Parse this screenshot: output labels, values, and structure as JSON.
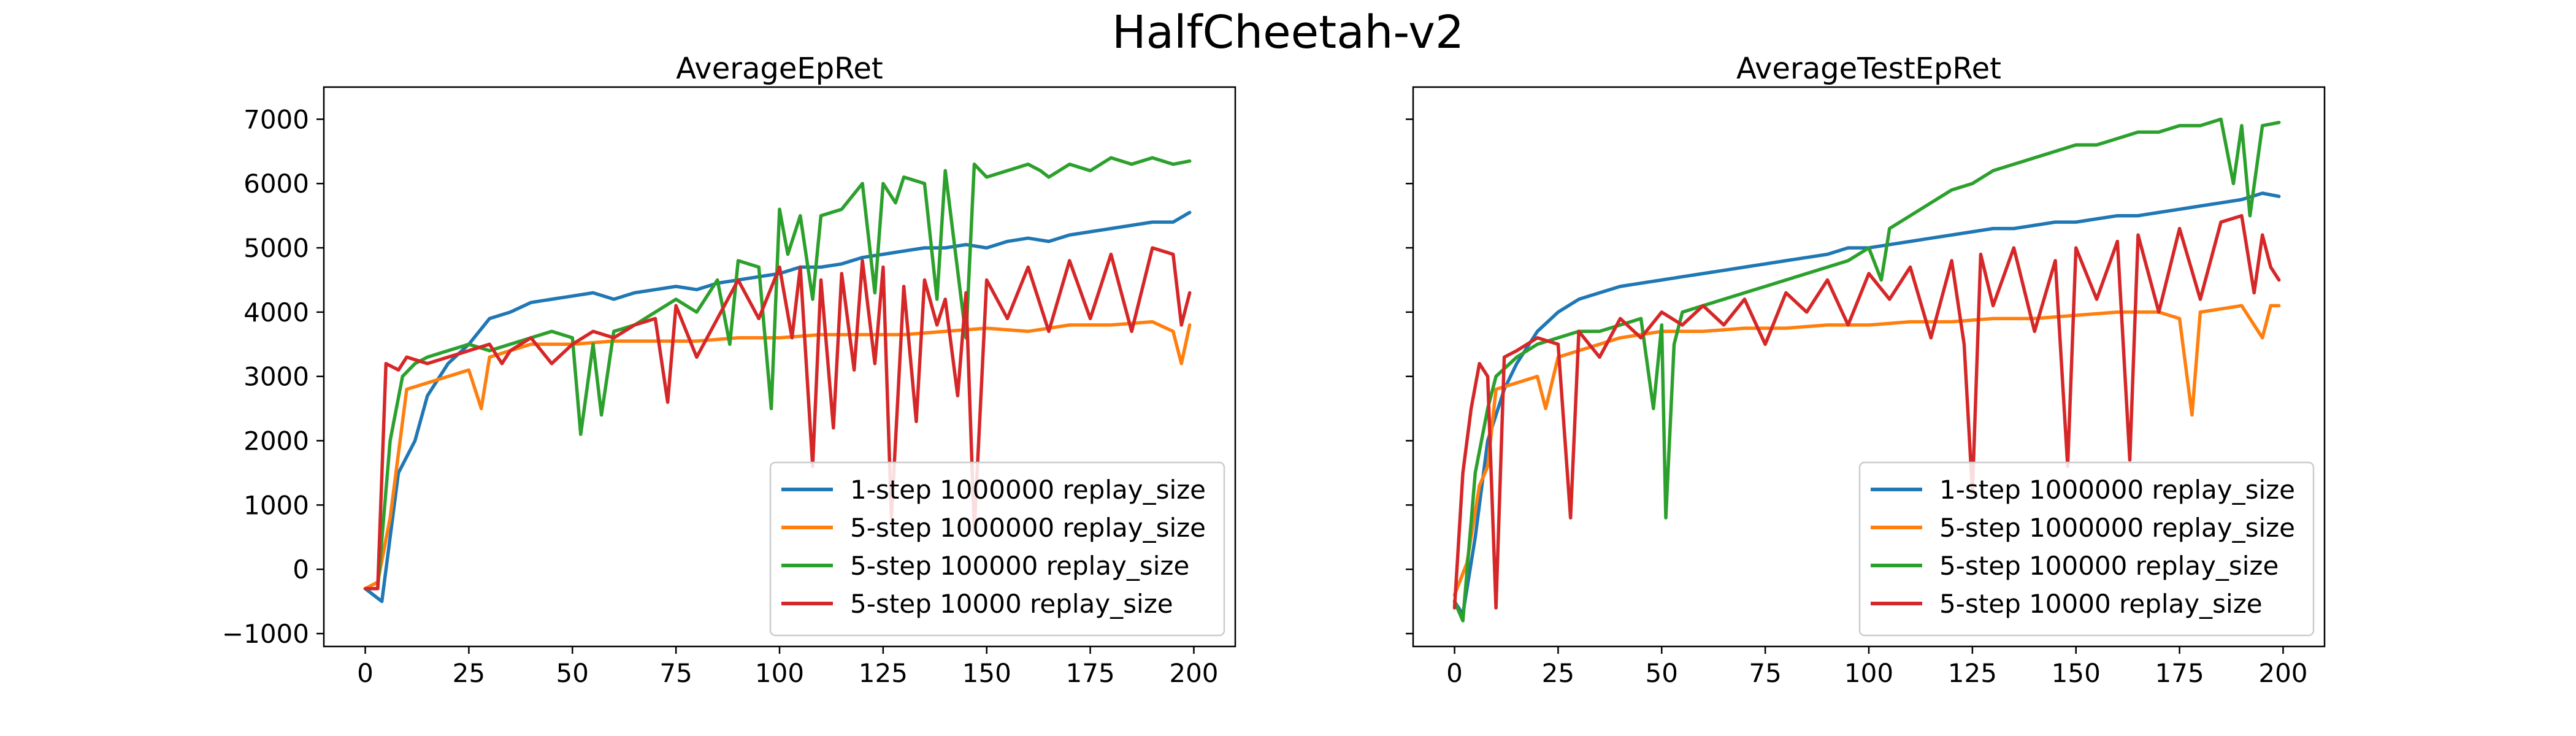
{
  "figure": {
    "title": "HalfCheetah-v2"
  },
  "chart_data": [
    {
      "type": "line",
      "title": "AverageEpRet",
      "xlabel": "",
      "ylabel": "",
      "xlim": [
        -10,
        210
      ],
      "ylim": [
        -1200,
        7500
      ],
      "xticks": [
        0,
        25,
        50,
        75,
        100,
        125,
        150,
        175,
        200
      ],
      "yticks": [
        -1000,
        0,
        1000,
        2000,
        3000,
        4000,
        5000,
        6000,
        7000
      ],
      "grid": false,
      "legend_position": "lower-right",
      "series": [
        {
          "name": "1-step 1000000 replay_size",
          "color": "#1f77b4",
          "x": [
            0,
            4,
            8,
            12,
            15,
            20,
            25,
            30,
            35,
            40,
            45,
            50,
            55,
            60,
            65,
            70,
            75,
            80,
            85,
            90,
            95,
            100,
            105,
            110,
            115,
            120,
            125,
            130,
            135,
            140,
            145,
            150,
            155,
            160,
            165,
            170,
            175,
            180,
            185,
            190,
            195,
            199
          ],
          "y": [
            -300,
            -500,
            1500,
            2000,
            2700,
            3200,
            3500,
            3900,
            4000,
            4150,
            4200,
            4250,
            4300,
            4200,
            4300,
            4350,
            4400,
            4350,
            4450,
            4500,
            4550,
            4600,
            4700,
            4700,
            4750,
            4850,
            4900,
            4950,
            5000,
            5000,
            5050,
            5000,
            5100,
            5150,
            5100,
            5200,
            5250,
            5300,
            5350,
            5400,
            5400,
            5550
          ]
        },
        {
          "name": "5-step 1000000 replay_size",
          "color": "#ff7f0e",
          "x": [
            0,
            3,
            6,
            10,
            15,
            20,
            25,
            28,
            30,
            35,
            40,
            50,
            60,
            70,
            80,
            90,
            100,
            110,
            120,
            130,
            140,
            150,
            160,
            170,
            180,
            190,
            195,
            197,
            199
          ],
          "y": [
            -300,
            -200,
            800,
            2800,
            2900,
            3000,
            3100,
            2500,
            3300,
            3400,
            3500,
            3500,
            3550,
            3550,
            3550,
            3600,
            3600,
            3650,
            3650,
            3650,
            3700,
            3750,
            3700,
            3800,
            3800,
            3850,
            3700,
            3200,
            3800
          ]
        },
        {
          "name": "5-step 100000 replay_size",
          "color": "#2ca02c",
          "x": [
            0,
            3,
            6,
            9,
            12,
            15,
            20,
            25,
            30,
            35,
            40,
            45,
            50,
            52,
            55,
            57,
            60,
            65,
            70,
            75,
            80,
            85,
            88,
            90,
            95,
            98,
            100,
            102,
            105,
            108,
            110,
            115,
            120,
            123,
            125,
            128,
            130,
            135,
            138,
            140,
            145,
            147,
            150,
            155,
            160,
            163,
            165,
            170,
            175,
            180,
            185,
            190,
            195,
            199
          ],
          "y": [
            -300,
            -300,
            2000,
            3000,
            3200,
            3300,
            3400,
            3500,
            3400,
            3500,
            3600,
            3700,
            3600,
            2100,
            3500,
            2400,
            3700,
            3800,
            4000,
            4200,
            4000,
            4500,
            3500,
            4800,
            4700,
            2500,
            5600,
            4900,
            5500,
            4200,
            5500,
            5600,
            6000,
            4300,
            6000,
            5700,
            6100,
            6000,
            4200,
            6200,
            3600,
            6300,
            6100,
            6200,
            6300,
            6200,
            6100,
            6300,
            6200,
            6400,
            6300,
            6400,
            6300,
            6350
          ]
        },
        {
          "name": "5-step 10000 replay_size",
          "color": "#d62728",
          "x": [
            0,
            3,
            5,
            8,
            10,
            15,
            20,
            25,
            30,
            33,
            35,
            40,
            45,
            50,
            55,
            60,
            65,
            70,
            73,
            75,
            80,
            85,
            90,
            95,
            100,
            103,
            105,
            108,
            110,
            113,
            115,
            118,
            120,
            123,
            125,
            127,
            130,
            133,
            135,
            138,
            140,
            143,
            145,
            147,
            150,
            155,
            160,
            165,
            170,
            175,
            180,
            185,
            190,
            195,
            197,
            199
          ],
          "y": [
            -300,
            -300,
            3200,
            3100,
            3300,
            3200,
            3300,
            3400,
            3500,
            3200,
            3400,
            3600,
            3200,
            3500,
            3700,
            3600,
            3800,
            3900,
            2600,
            4100,
            3300,
            3900,
            4500,
            3900,
            4700,
            3600,
            4700,
            1600,
            4500,
            2200,
            4600,
            3100,
            4800,
            3200,
            4700,
            800,
            4400,
            2300,
            4500,
            3800,
            4200,
            2700,
            4300,
            600,
            4500,
            3900,
            4700,
            3700,
            4800,
            3900,
            4900,
            3700,
            5000,
            4900,
            3800,
            4300
          ]
        }
      ]
    },
    {
      "type": "line",
      "title": "AverageTestEpRet",
      "xlabel": "",
      "ylabel": "",
      "xlim": [
        -10,
        210
      ],
      "ylim": [
        -1200,
        7500
      ],
      "xticks": [
        0,
        25,
        50,
        75,
        100,
        125,
        150,
        175,
        200
      ],
      "yticks": [
        -1000,
        0,
        1000,
        2000,
        3000,
        4000,
        5000,
        6000,
        7000
      ],
      "grid": false,
      "legend_position": "lower-right",
      "series": [
        {
          "name": "1-step 1000000 replay_size",
          "color": "#1f77b4",
          "x": [
            0,
            2,
            5,
            8,
            12,
            15,
            20,
            25,
            30,
            35,
            40,
            45,
            50,
            55,
            60,
            65,
            70,
            75,
            80,
            85,
            90,
            95,
            100,
            105,
            110,
            115,
            120,
            125,
            130,
            135,
            140,
            145,
            150,
            155,
            160,
            165,
            170,
            175,
            180,
            185,
            190,
            195,
            199
          ],
          "y": [
            -500,
            -700,
            500,
            2000,
            2800,
            3200,
            3700,
            4000,
            4200,
            4300,
            4400,
            4450,
            4500,
            4550,
            4600,
            4650,
            4700,
            4750,
            4800,
            4850,
            4900,
            5000,
            5000,
            5050,
            5100,
            5150,
            5200,
            5250,
            5300,
            5300,
            5350,
            5400,
            5400,
            5450,
            5500,
            5500,
            5550,
            5600,
            5650,
            5700,
            5750,
            5850,
            5800
          ]
        },
        {
          "name": "5-step 1000000 replay_size",
          "color": "#ff7f0e",
          "x": [
            0,
            3,
            6,
            8,
            10,
            15,
            20,
            22,
            25,
            30,
            40,
            50,
            60,
            70,
            80,
            90,
            100,
            110,
            120,
            130,
            140,
            150,
            160,
            170,
            175,
            178,
            180,
            185,
            190,
            195,
            197,
            199
          ],
          "y": [
            -400,
            100,
            1300,
            1600,
            2800,
            2900,
            3000,
            2500,
            3300,
            3400,
            3600,
            3700,
            3700,
            3750,
            3750,
            3800,
            3800,
            3850,
            3850,
            3900,
            3900,
            3950,
            4000,
            4000,
            3900,
            2400,
            4000,
            4050,
            4100,
            3600,
            4100,
            4100
          ]
        },
        {
          "name": "5-step 100000 replay_size",
          "color": "#2ca02c",
          "x": [
            0,
            2,
            5,
            8,
            10,
            15,
            20,
            25,
            30,
            35,
            40,
            45,
            48,
            50,
            51,
            53,
            55,
            60,
            65,
            70,
            75,
            80,
            85,
            90,
            95,
            100,
            103,
            105,
            110,
            115,
            120,
            125,
            130,
            135,
            140,
            145,
            150,
            155,
            160,
            165,
            170,
            175,
            180,
            185,
            188,
            190,
            192,
            195,
            199
          ],
          "y": [
            -500,
            -800,
            1500,
            2500,
            3000,
            3300,
            3500,
            3600,
            3700,
            3700,
            3800,
            3900,
            2500,
            3800,
            800,
            3500,
            4000,
            4100,
            4200,
            4300,
            4400,
            4500,
            4600,
            4700,
            4800,
            5000,
            4500,
            5300,
            5500,
            5700,
            5900,
            6000,
            6200,
            6300,
            6400,
            6500,
            6600,
            6600,
            6700,
            6800,
            6800,
            6900,
            6900,
            7000,
            6000,
            6900,
            5500,
            6900,
            6950
          ]
        },
        {
          "name": "5-step 10000 replay_size",
          "color": "#d62728",
          "x": [
            0,
            2,
            4,
            6,
            8,
            10,
            12,
            15,
            20,
            25,
            28,
            30,
            35,
            40,
            45,
            50,
            55,
            60,
            65,
            70,
            75,
            80,
            85,
            90,
            95,
            100,
            105,
            110,
            115,
            120,
            123,
            125,
            127,
            130,
            135,
            140,
            145,
            148,
            150,
            155,
            160,
            163,
            165,
            170,
            175,
            180,
            185,
            190,
            193,
            195,
            197,
            199
          ],
          "y": [
            -600,
            1500,
            2500,
            3200,
            3000,
            -600,
            3300,
            3400,
            3600,
            3500,
            800,
            3700,
            3300,
            3900,
            3600,
            4000,
            3800,
            4100,
            3800,
            4200,
            3500,
            4300,
            4000,
            4500,
            3800,
            4600,
            4200,
            4700,
            3600,
            4800,
            3500,
            1200,
            4900,
            4100,
            5000,
            3700,
            4800,
            1600,
            5000,
            4200,
            5100,
            1700,
            5200,
            4000,
            5300,
            4200,
            5400,
            5500,
            4300,
            5200,
            4700,
            4500
          ]
        }
      ]
    }
  ]
}
